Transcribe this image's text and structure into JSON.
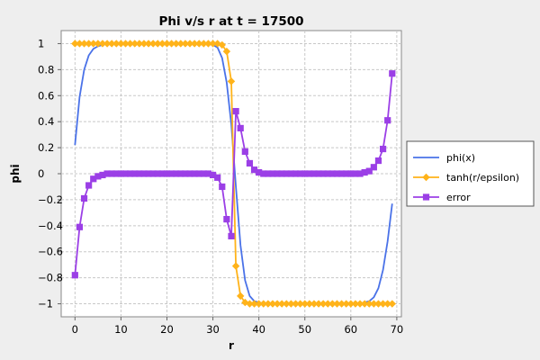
{
  "chart_data": {
    "type": "line",
    "title": "Phi v/s r at t = 17500",
    "xlabel": "r",
    "ylabel": "phi",
    "xlim": [
      -3,
      71
    ],
    "ylim": [
      -1.1,
      1.1
    ],
    "x_ticks": [
      0,
      10,
      20,
      30,
      40,
      50,
      60,
      70
    ],
    "y_ticks": [
      1,
      0.8,
      0.6,
      0.4,
      0.2,
      0,
      -0.2,
      -0.4,
      -0.6,
      -0.8,
      -1
    ],
    "y_tick_labels": [
      "1",
      "0.8",
      "0.6",
      "0.4",
      "0.2",
      "0",
      "−0.2",
      "−0.4",
      "−0.6",
      "−0.8",
      "−1"
    ],
    "grid": true,
    "legend_position": "right",
    "series": [
      {
        "name": "phi(x)",
        "color": "#4a72e8",
        "marker": "none",
        "x": [
          0,
          1,
          2,
          3,
          4,
          5,
          6,
          7,
          8,
          9,
          10,
          11,
          12,
          13,
          14,
          15,
          16,
          17,
          18,
          19,
          20,
          21,
          22,
          23,
          24,
          25,
          26,
          27,
          28,
          29,
          30,
          31,
          32,
          33,
          34,
          35,
          36,
          37,
          38,
          39,
          40,
          41,
          42,
          43,
          44,
          45,
          46,
          47,
          48,
          49,
          50,
          51,
          52,
          53,
          54,
          55,
          56,
          57,
          58,
          59,
          60,
          61,
          62,
          63,
          64,
          65,
          66,
          67,
          68,
          69
        ],
        "y": [
          0.22,
          0.59,
          0.8,
          0.91,
          0.96,
          0.98,
          0.99,
          1,
          1,
          1,
          1,
          1,
          1,
          1,
          1,
          1,
          1,
          1,
          1,
          1,
          1,
          1,
          1,
          1,
          1,
          1,
          1,
          1,
          1,
          1,
          0.99,
          0.97,
          0.89,
          0.7,
          0.38,
          -0.1,
          -0.55,
          -0.82,
          -0.94,
          -0.98,
          -0.99,
          -1,
          -1,
          -1,
          -1,
          -1,
          -1,
          -1,
          -1,
          -1,
          -1,
          -1,
          -1,
          -1,
          -1,
          -1,
          -1,
          -1,
          -1,
          -1,
          -1,
          -1,
          -1,
          -0.99,
          -0.98,
          -0.95,
          -0.88,
          -0.74,
          -0.52,
          -0.23
        ]
      },
      {
        "name": "tanh(r/epsilon)",
        "color": "#ffb31a",
        "marker": "diamond",
        "x": [
          0,
          1,
          2,
          3,
          4,
          5,
          6,
          7,
          8,
          9,
          10,
          11,
          12,
          13,
          14,
          15,
          16,
          17,
          18,
          19,
          20,
          21,
          22,
          23,
          24,
          25,
          26,
          27,
          28,
          29,
          30,
          31,
          32,
          33,
          34,
          35,
          36,
          37,
          38,
          39,
          40,
          41,
          42,
          43,
          44,
          45,
          46,
          47,
          48,
          49,
          50,
          51,
          52,
          53,
          54,
          55,
          56,
          57,
          58,
          59,
          60,
          61,
          62,
          63,
          64,
          65,
          66,
          67,
          68,
          69
        ],
        "y": [
          1,
          1,
          1,
          1,
          1,
          1,
          1,
          1,
          1,
          1,
          1,
          1,
          1,
          1,
          1,
          1,
          1,
          1,
          1,
          1,
          1,
          1,
          1,
          1,
          1,
          1,
          1,
          1,
          1,
          1,
          1,
          1,
          0.99,
          0.94,
          0.71,
          -0.71,
          -0.94,
          -0.99,
          -1,
          -1,
          -1,
          -1,
          -1,
          -1,
          -1,
          -1,
          -1,
          -1,
          -1,
          -1,
          -1,
          -1,
          -1,
          -1,
          -1,
          -1,
          -1,
          -1,
          -1,
          -1,
          -1,
          -1,
          -1,
          -1,
          -1,
          -1,
          -1,
          -1,
          -1,
          -1
        ]
      },
      {
        "name": "error",
        "color": "#9b3fe6",
        "marker": "square",
        "x": [
          0,
          1,
          2,
          3,
          4,
          5,
          6,
          7,
          8,
          9,
          10,
          11,
          12,
          13,
          14,
          15,
          16,
          17,
          18,
          19,
          20,
          21,
          22,
          23,
          24,
          25,
          26,
          27,
          28,
          29,
          30,
          31,
          32,
          33,
          34,
          35,
          36,
          37,
          38,
          39,
          40,
          41,
          42,
          43,
          44,
          45,
          46,
          47,
          48,
          49,
          50,
          51,
          52,
          53,
          54,
          55,
          56,
          57,
          58,
          59,
          60,
          61,
          62,
          63,
          64,
          65,
          66,
          67,
          68,
          69
        ],
        "y": [
          -0.78,
          -0.41,
          -0.19,
          -0.09,
          -0.04,
          -0.02,
          -0.01,
          0,
          0,
          0,
          0,
          0,
          0,
          0,
          0,
          0,
          0,
          0,
          0,
          0,
          0,
          0,
          0,
          0,
          0,
          0,
          0,
          0,
          0,
          0,
          -0.01,
          -0.03,
          -0.1,
          -0.35,
          -0.48,
          0.48,
          0.35,
          0.17,
          0.08,
          0.03,
          0.01,
          0,
          0,
          0,
          0,
          0,
          0,
          0,
          0,
          0,
          0,
          0,
          0,
          0,
          0,
          0,
          0,
          0,
          0,
          0,
          0,
          0,
          0,
          0.01,
          0.02,
          0.05,
          0.1,
          0.19,
          0.41,
          0.77
        ]
      }
    ]
  }
}
